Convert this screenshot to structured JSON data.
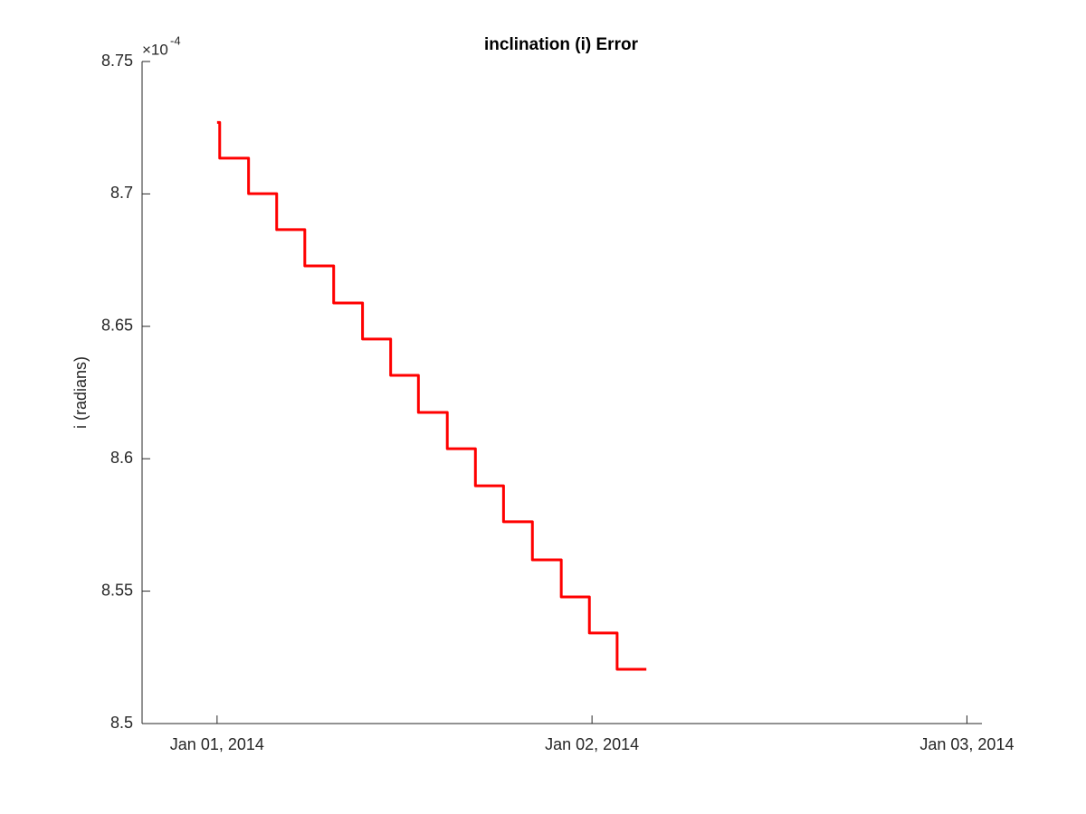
{
  "chart_data": {
    "type": "line",
    "title": "inclination (i) Error",
    "y_label": "i (radians)",
    "y_multiplier": {
      "base": "×10",
      "power": "-4"
    },
    "x": [
      0,
      0.007,
      0.007,
      0.084,
      0.084,
      0.159,
      0.159,
      0.234,
      0.234,
      0.311,
      0.311,
      0.388,
      0.388,
      0.463,
      0.463,
      0.537,
      0.537,
      0.614,
      0.614,
      0.689,
      0.689,
      0.764,
      0.764,
      0.841,
      0.841,
      0.918,
      0.918,
      0.993,
      0.993,
      1.067,
      1.067,
      1.145
    ],
    "series": [
      {
        "color": "#ff0000",
        "values": [
          8.727,
          8.727,
          8.7135,
          8.7135,
          8.7001,
          8.7001,
          8.6865,
          8.6865,
          8.6728,
          8.6728,
          8.6588,
          8.6588,
          8.6452,
          8.6452,
          8.6315,
          8.6315,
          8.6175,
          8.6175,
          8.6038,
          8.6038,
          8.5898,
          8.5898,
          8.5762,
          8.5762,
          8.5618,
          8.5618,
          8.5478,
          8.5478,
          8.5342,
          8.5342,
          8.5205,
          8.5205
        ]
      }
    ],
    "xlim": [
      -0.2,
      2.04
    ],
    "xticks": [
      {
        "value": 0,
        "label": "Jan 01, 2014"
      },
      {
        "value": 1,
        "label": "Jan 02, 2014"
      },
      {
        "value": 2,
        "label": "Jan 03, 2014"
      }
    ],
    "ylim": [
      8.5,
      8.75
    ],
    "yticks": [
      8.5,
      8.55,
      8.6,
      8.65,
      8.7,
      8.75
    ],
    "grid": false
  }
}
